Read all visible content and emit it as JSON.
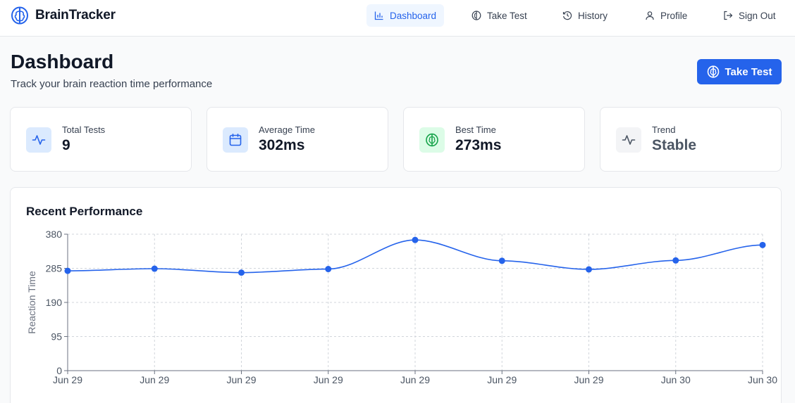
{
  "app": {
    "name": "BrainTracker"
  },
  "nav": {
    "items": [
      {
        "label": "Dashboard",
        "icon": "bar-chart-icon",
        "active": true
      },
      {
        "label": "Take Test",
        "icon": "brain-icon",
        "active": false
      },
      {
        "label": "History",
        "icon": "history-icon",
        "active": false
      },
      {
        "label": "Profile",
        "icon": "user-icon",
        "active": false
      },
      {
        "label": "Sign Out",
        "icon": "sign-out-icon",
        "active": false
      }
    ]
  },
  "header": {
    "title": "Dashboard",
    "subtitle": "Track your brain reaction time performance",
    "cta_label": "Take Test"
  },
  "stats": [
    {
      "label": "Total Tests",
      "value": "9",
      "icon": "activity-icon",
      "icon_color": "#2563eb",
      "icon_bg": "#dbeafe"
    },
    {
      "label": "Average Time",
      "value": "302ms",
      "icon": "calendar-icon",
      "icon_color": "#2563eb",
      "icon_bg": "#dbeafe"
    },
    {
      "label": "Best Time",
      "value": "273ms",
      "icon": "brain-icon",
      "icon_color": "#16a34a",
      "icon_bg": "#dcfce7"
    },
    {
      "label": "Trend",
      "value": "Stable",
      "icon": "activity-icon",
      "icon_color": "#4b5563",
      "icon_bg": "#f3f4f6",
      "value_color": "#4b5563"
    }
  ],
  "chart": {
    "title": "Recent Performance"
  },
  "chart_data": {
    "type": "line",
    "title": "Recent Performance",
    "xlabel": "",
    "ylabel": "Reaction Time",
    "categories": [
      "Jun 29",
      "Jun 29",
      "Jun 29",
      "Jun 29",
      "Jun 29",
      "Jun 29",
      "Jun 29",
      "Jun 30",
      "Jun 30"
    ],
    "values": [
      278,
      284,
      273,
      283,
      364,
      306,
      282,
      307,
      350
    ],
    "ylim": [
      0,
      380
    ],
    "yticks": [
      0,
      95,
      190,
      285,
      380
    ],
    "grid": true,
    "smooth": true,
    "color": "#2563eb"
  },
  "colors": {
    "accent": "#2563eb",
    "text": "#111827",
    "muted": "#374151"
  }
}
